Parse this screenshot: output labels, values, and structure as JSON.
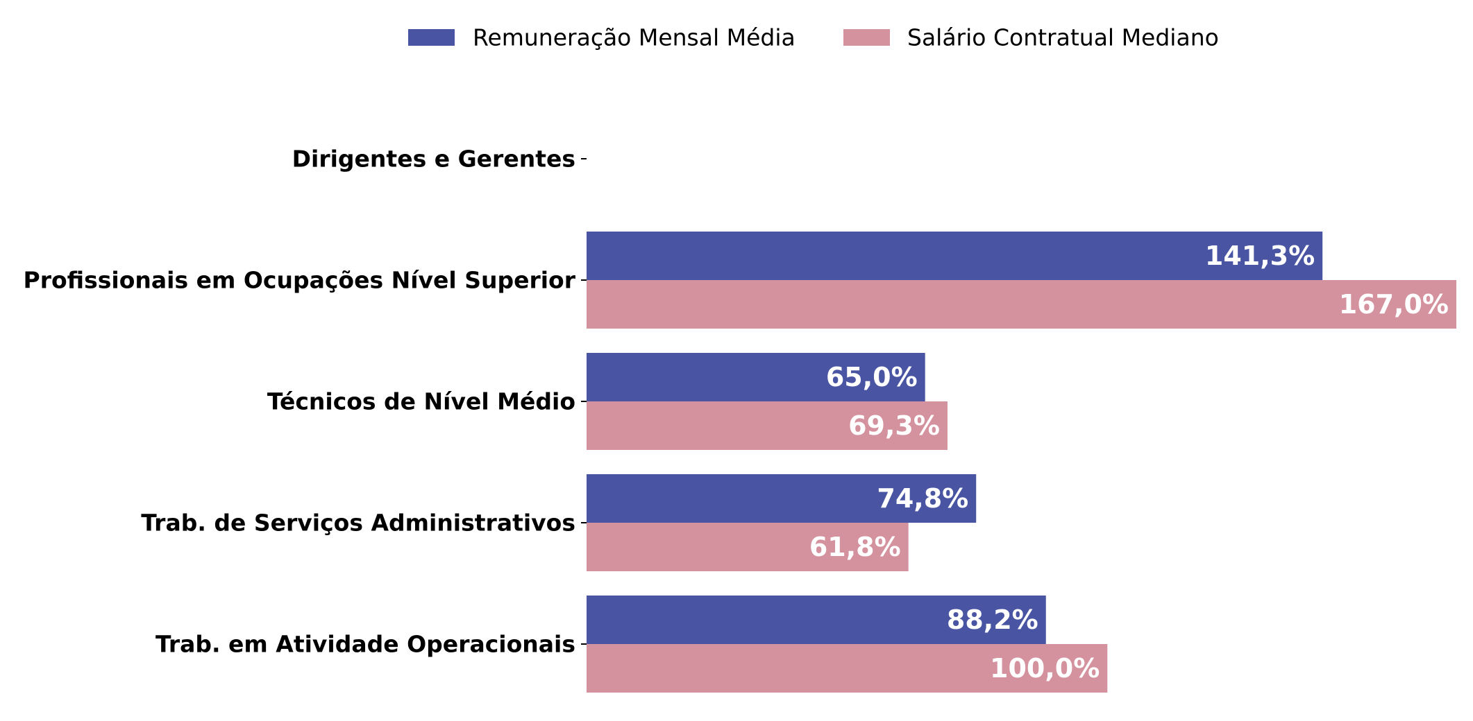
{
  "chart_data": {
    "type": "bar",
    "orientation": "horizontal",
    "categories": [
      "Dirigentes e Gerentes",
      "Profissionais em Ocupações Nível Superior",
      "Técnicos de Nível Médio",
      "Trab. de Serviços Administrativos",
      "Trab. em Atividade Operacionais"
    ],
    "series": [
      {
        "name": "Remuneração Mensal Média",
        "color": "#4955a3",
        "values": [
          null,
          141.3,
          65.0,
          74.8,
          88.2
        ],
        "labels": [
          "",
          "141,3%",
          "65,0%",
          "74,8%",
          "88,2%"
        ]
      },
      {
        "name": "Salário Contratual Mediano",
        "color": "#d4929e",
        "values": [
          null,
          167.0,
          69.3,
          61.8,
          100.0
        ],
        "labels": [
          "",
          "167,0%",
          "69,3%",
          "61,8%",
          "100,0%"
        ]
      }
    ],
    "xlim": [
      0,
      167
    ],
    "x_axis_visible": false,
    "grid": false,
    "legend": "top-center",
    "title": "",
    "xlabel": "",
    "ylabel": ""
  }
}
